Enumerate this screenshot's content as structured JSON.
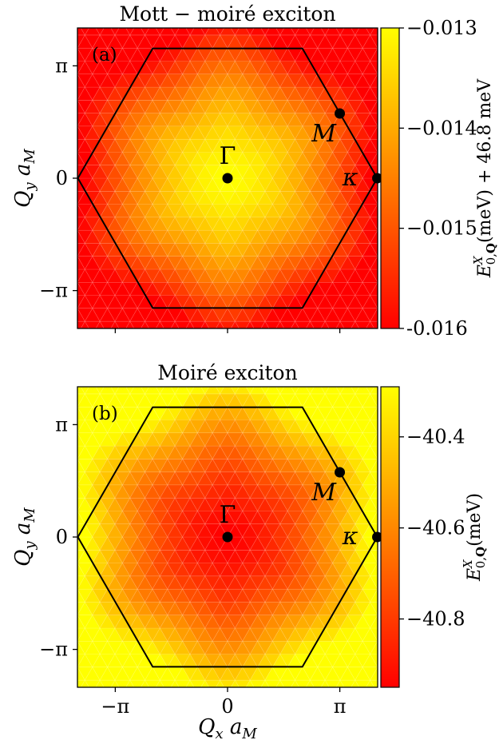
{
  "chart_data": [
    {
      "type": "heatmap",
      "panel_label": "(a)",
      "title": "Mott − moiré exciton",
      "xlabel": "",
      "ylabel": "Q_y a_M",
      "xlim": [
        -4.2,
        4.2
      ],
      "ylim": [
        -4.2,
        4.2
      ],
      "xtick_labels": [],
      "ytick_labels": [
        "π",
        "0",
        "−π"
      ],
      "colorbar": {
        "label": "E^X_{0,Q}(meV) + 46.8 meV",
        "range": [
          -0.016,
          -0.013
        ],
        "ticks": [
          "−0.013",
          "−0.014",
          "−0.015",
          "-0.016"
        ],
        "colormap": "autumn",
        "low_color": "#ff0000",
        "high_color": "#ffff00"
      },
      "center_value": -0.013,
      "edge_value": -0.016,
      "brillouin_zone": "hexagon",
      "points": [
        {
          "label": "Γ",
          "qx": 0,
          "qy": 0
        },
        {
          "label": "M",
          "qx": 3.14,
          "qy": 1.81
        },
        {
          "label": "κ",
          "qx": 4.19,
          "qy": 0
        }
      ]
    },
    {
      "type": "heatmap",
      "panel_label": "(b)",
      "title": "Moiré exciton",
      "xlabel": "Q_x a_M",
      "ylabel": "Q_y a_M",
      "xlim": [
        -4.2,
        4.2
      ],
      "ylim": [
        -4.2,
        4.2
      ],
      "xtick_labels": [
        "−π",
        "0",
        "π"
      ],
      "ytick_labels": [
        "π",
        "0",
        "−π"
      ],
      "colorbar": {
        "label": "E^X_{0,Q}(meV)",
        "range": [
          -40.95,
          -40.29
        ],
        "ticks": [
          "−40.4",
          "−40.6",
          "−40.8"
        ],
        "colormap": "autumn",
        "low_color": "#ff0000",
        "high_color": "#ffff00"
      },
      "center_value": -40.95,
      "edge_value": -40.29,
      "brillouin_zone": "hexagon",
      "points": [
        {
          "label": "Γ",
          "qx": 0,
          "qy": 0
        },
        {
          "label": "M",
          "qx": 3.14,
          "qy": 1.81
        },
        {
          "label": "κ",
          "qx": 4.19,
          "qy": 0
        }
      ]
    }
  ]
}
